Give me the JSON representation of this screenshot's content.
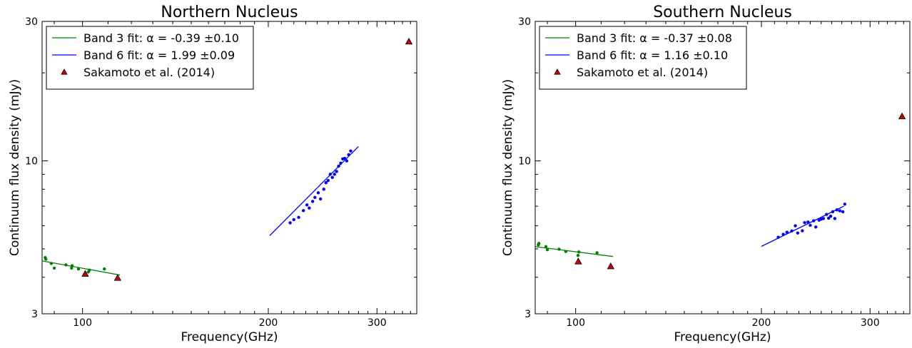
{
  "chart_data": [
    {
      "type": "scatter",
      "title": "Northern Nucleus",
      "xlabel": "Frequency(GHz)",
      "ylabel": "Continuum flux density (mJy)",
      "xscale": "log",
      "yscale": "log",
      "xlim": [
        86,
        348
      ],
      "ylim": [
        3,
        30
      ],
      "xticks": [
        100,
        200,
        300
      ],
      "xtick_labels": [
        "100",
        "200",
        "300"
      ],
      "yticks": [
        3,
        10,
        30
      ],
      "ytick_labels": [
        "3",
        "10",
        "30"
      ],
      "grid": false,
      "legend_position": "top-left",
      "series": [
        {
          "name": "Band 3 fit: α = -0.39 ±0.10",
          "kind": "fit-line-with-points",
          "color": "#008000",
          "fit": {
            "x": [
              86,
              115
            ],
            "y": [
              4.55,
              4.07
            ]
          },
          "points": {
            "x": [
              87,
              87.2,
              89,
              90,
              94,
              96,
              96.2,
              98.5,
              102.2,
              102.6,
              108.5
            ],
            "y": [
              4.67,
              4.61,
              4.46,
              4.3,
              4.41,
              4.3,
              4.38,
              4.27,
              4.17,
              4.23,
              4.27
            ]
          }
        },
        {
          "name": "Band 6 fit: α = 1.99 ±0.09",
          "kind": "fit-line-with-points",
          "color": "#0000ff",
          "fit": {
            "x": [
              201,
              280
            ],
            "y": [
              5.55,
              11.2
            ]
          },
          "points": {
            "x": [
              217,
              220,
              224,
              228,
              231,
              233,
              236,
              238,
              241,
              243,
              246,
              248,
              250,
              252,
              254,
              256,
              258,
              260,
              262,
              264,
              266,
              268,
              270,
              272
            ],
            "y": [
              6.14,
              6.3,
              6.41,
              6.76,
              7.07,
              6.9,
              7.27,
              7.5,
              7.78,
              7.41,
              8.0,
              8.42,
              8.57,
              9.0,
              8.78,
              9.0,
              9.2,
              9.6,
              9.82,
              10.16,
              10.2,
              10.0,
              10.5,
              10.81
            ]
          }
        },
        {
          "name": "Sakamoto et al. (2014)",
          "kind": "markers",
          "marker": "triangle",
          "color": "#cc0000",
          "points": {
            "x": [
              101,
              114,
              338
            ],
            "y": [
              4.11,
              3.98,
              25.6
            ]
          }
        }
      ]
    },
    {
      "type": "scatter",
      "title": "Southern Nucleus",
      "xlabel": "Frequency(GHz)",
      "ylabel": "Continuum flux density (mJy)",
      "xscale": "log",
      "yscale": "log",
      "xlim": [
        86,
        348
      ],
      "ylim": [
        3,
        30
      ],
      "xticks": [
        100,
        200,
        300
      ],
      "xtick_labels": [
        "100",
        "200",
        "300"
      ],
      "yticks": [
        3,
        10,
        30
      ],
      "ytick_labels": [
        "3",
        "10",
        "30"
      ],
      "grid": false,
      "legend_position": "top-left",
      "series": [
        {
          "name": "Band 3 fit: α = -0.37 ±0.08",
          "kind": "fit-line-with-points",
          "color": "#008000",
          "fit": {
            "x": [
              86,
              115
            ],
            "y": [
              5.09,
              4.71
            ]
          },
          "points": {
            "x": [
              87,
              87.2,
              89.5,
              90,
              94,
              96.4,
              100.9,
              101.2,
              108.3
            ],
            "y": [
              5.16,
              5.22,
              5.09,
              4.97,
              4.99,
              4.9,
              4.75,
              4.88,
              4.85
            ]
          }
        },
        {
          "name": "Band 6 fit: α = 1.16 ±0.10",
          "kind": "fit-line-with-points",
          "color": "#0000ff",
          "fit": {
            "x": [
              200,
              272
            ],
            "y": [
              5.1,
              7.0
            ]
          },
          "points": {
            "x": [
              213,
              217,
              220,
              224,
              227,
              229,
              233,
              235,
              238,
              240,
              243,
              245,
              248,
              250,
              252,
              255,
              257,
              259,
              261,
              263,
              265,
              268,
              271,
              273
            ],
            "y": [
              5.48,
              5.61,
              5.7,
              5.76,
              6.0,
              5.67,
              5.77,
              6.15,
              6.18,
              6.02,
              6.24,
              5.94,
              6.27,
              6.32,
              6.35,
              6.56,
              6.37,
              6.47,
              6.7,
              6.35,
              6.8,
              6.75,
              6.7,
              7.11
            ]
          }
        },
        {
          "name": "Sakamoto et al. (2014)",
          "kind": "markers",
          "marker": "triangle",
          "color": "#cc0000",
          "points": {
            "x": [
              101,
              114,
              338
            ],
            "y": [
              4.53,
              4.36,
              14.2
            ]
          }
        }
      ]
    }
  ]
}
